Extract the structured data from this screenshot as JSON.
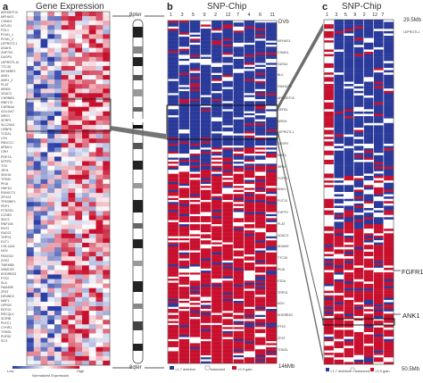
{
  "panels": {
    "a": {
      "letter": "a",
      "title": "Gene Expression",
      "legend_low": "Low",
      "legend_high": "High",
      "legend_caption": "Normalized Expression"
    },
    "b": {
      "letter": "b",
      "title": "SNP-Chip",
      "columns": [
        "1",
        "3",
        "5",
        "9",
        "2",
        "12",
        "7",
        "4",
        "6",
        "11"
      ],
      "top_label": "DVb",
      "legend": [
        "<1.7 deletion",
        "balanced",
        ">2.9 gain"
      ],
      "bottom_label": "146Mb"
    },
    "c": {
      "letter": "c",
      "title": "SNP-Chip",
      "columns": [
        "1",
        "3",
        "5",
        "9",
        "2",
        "12",
        "7"
      ],
      "top_label": "29.5Mb",
      "top_gene": "LEPROTL1",
      "gene_fgfr1": "FGFR1",
      "gene_ank1": "ANK1",
      "legend": [
        "<1.7 deletion",
        "balanced",
        ">2.9 gain"
      ],
      "bottom_label": "50.5Mb"
    }
  },
  "chromosome": {
    "top": "8pter",
    "bottom": "8qter"
  },
  "genes_a": [
    "ARHGEF10",
    "MFHAS1",
    "CSMD1",
    "MTUS1",
    "FGL1",
    "PCM1_1",
    "PCM1_2",
    "LEPROTL1",
    "ASAH1",
    "ZNF703",
    "DUSP4",
    "LEPROTL1b",
    "TTC35",
    "EIF4EBP1",
    "ANK1",
    "ANK1_2",
    "PLAT",
    "IKBKB",
    "VDAC3",
    "CHRNB3",
    "RNF170",
    "CHRNA6",
    "GOLGA7",
    "NRG1",
    "SFRP1",
    "SLC20A2",
    "CEBPD",
    "TCEA1",
    "LYN",
    "RB1CC1",
    "ARMC1",
    "CRH",
    "PDE7A",
    "MTFR1",
    "TOX",
    "JPH1",
    "SNX16",
    "TPD52",
    "PKIA",
    "HNF4G",
    "RUNX1T1",
    "ZFHX4",
    "TP53INP1",
    "PDP1",
    "PTDSS1",
    "CCNE2",
    "SDC2",
    "RNF19A",
    "ENY2",
    "RAD21",
    "TRPS1",
    "EXT1",
    "COL14A1",
    "NOV",
    "FBXO32",
    "ZHX2",
    "TMEM65",
    "NSMCE2",
    "KHDRBS3",
    "PTK2",
    "SLA",
    "FAM49B",
    "ZFAT",
    "DENND3",
    "MAF1",
    "GPR20",
    "EEF1D",
    "RECQL4",
    "SCRIB",
    "PLEC1",
    "CYHR1",
    "TONSL",
    "PUF60",
    "SCX"
  ],
  "genes_b": [
    "MFHAS1",
    "CSMD1",
    "GATA4",
    "BLK",
    "FAM167A",
    "ARHGEF10",
    "DEFB1",
    "MSRA",
    "LEPROTL1",
    "DUSP4",
    "NRG1",
    "WRN",
    "FGFR1",
    "ANK1",
    "FUT10",
    "CHPF2",
    "PLAT",
    "VDAC3",
    "ADAM9",
    "TTC35",
    "PKIA",
    "FZD6",
    "TRPS1",
    "NOV",
    "KHDRBS3",
    "PTK2",
    "ZFAT",
    "TONSL"
  ],
  "chart_data": [
    {
      "type": "heatmap",
      "name": "gene-expression",
      "color_scale": [
        "#2b3fa6",
        "#ffffff",
        "#c8102e"
      ]
    },
    {
      "type": "heatmap",
      "name": "snp-chip-overview",
      "categories": [
        "<1.7 deletion",
        "balanced",
        ">2.9 gain"
      ],
      "colors": [
        "#2a3a9a",
        "#ffffff",
        "#c8102e"
      ]
    },
    {
      "type": "heatmap",
      "name": "snp-chip-zoom",
      "categories": [
        "<1.7 deletion",
        "balanced",
        ">2.9 gain"
      ],
      "colors": [
        "#2a3a9a",
        "#ffffff",
        "#c8102e"
      ]
    }
  ]
}
